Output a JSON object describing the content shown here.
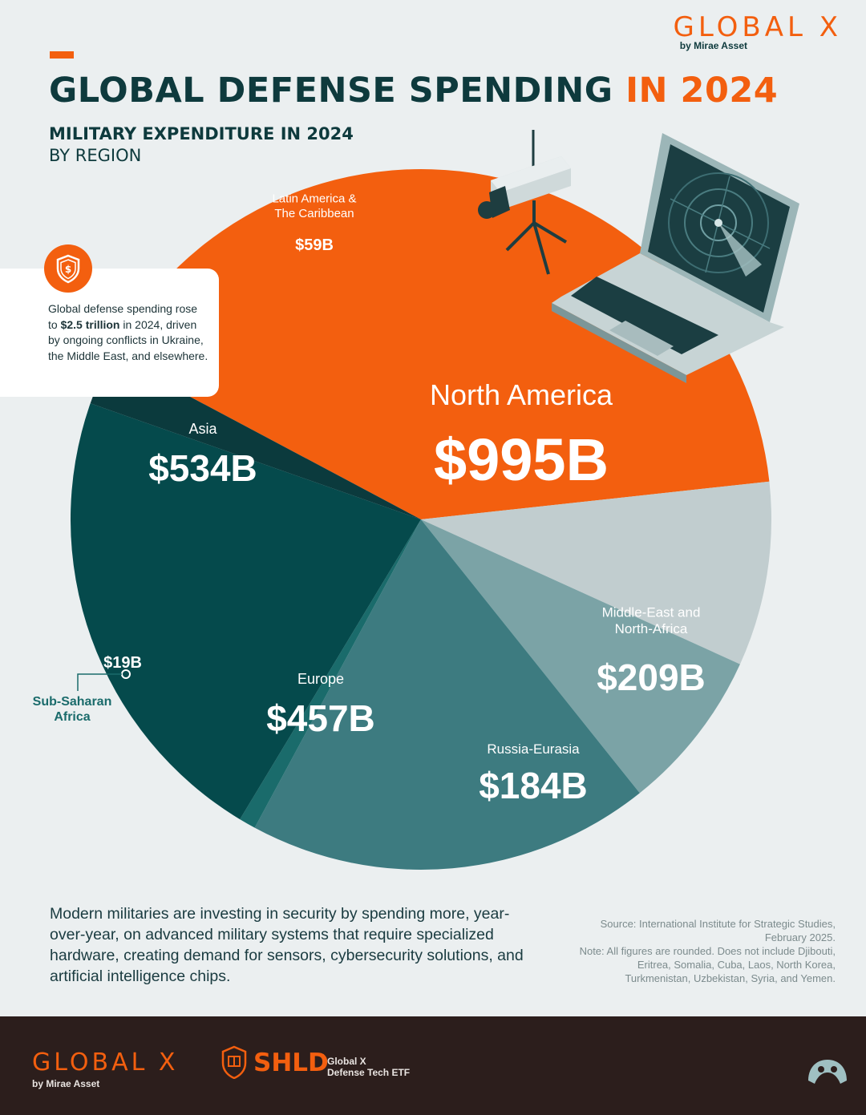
{
  "header": {
    "title_main": "GLOBAL DEFENSE SPENDING",
    "title_highlight": "IN 2024",
    "subtitle": "MILITARY EXPENDITURE IN 2024",
    "subtitle2": "BY REGION"
  },
  "logo": {
    "word": "GLOBAL X",
    "by": "by Mirae Asset"
  },
  "callout": {
    "text_before": "Global defense spending rose to ",
    "text_bold": "$2.5 trillion",
    "text_after": " in 2024, driven by ongoing conflicts in Ukraine, the Middle East, and elsewhere."
  },
  "chart_data": {
    "type": "pie",
    "title": "MILITARY EXPENDITURE IN 2024",
    "subtitle": "BY REGION",
    "units": "USD billions",
    "slices": [
      {
        "label": "North America",
        "label_lines": [
          "North America"
        ],
        "value": 995,
        "value_label": "$995B",
        "color": "#f35f0f"
      },
      {
        "label": "Middle-East and North-Africa",
        "label_lines": [
          "Middle-East and",
          "North-Africa"
        ],
        "value": 209,
        "value_label": "$209B",
        "color": "#c1cdcf"
      },
      {
        "label": "Russia-Eurasia",
        "label_lines": [
          "Russia-Eurasia"
        ],
        "value": 184,
        "value_label": "$184B",
        "color": "#7ba3a6"
      },
      {
        "label": "Europe",
        "label_lines": [
          "Europe"
        ],
        "value": 457,
        "value_label": "$457B",
        "color": "#3d7b80"
      },
      {
        "label": "Sub-Saharan Africa",
        "label_lines": [
          "Sub-Saharan",
          "Africa"
        ],
        "value": 19,
        "value_label": "$19B",
        "color": "#1a6b6b"
      },
      {
        "label": "Asia",
        "label_lines": [
          "Asia"
        ],
        "value": 534,
        "value_label": "$534B",
        "color": "#054a4c"
      },
      {
        "label": "Latin America & The Caribbean",
        "label_lines": [
          "Latin America &",
          "The Caribbean"
        ],
        "value": 59,
        "value_label": "$59B",
        "color": "#0b3a3d"
      }
    ]
  },
  "footnote": "Modern militaries are investing in security by spending more, year-over-year, on advanced military systems that require specialized hardware, creating demand for sensors, cybersecurity solutions, and artificial intelligence chips.",
  "source": {
    "source_text": "Source: International Institute for Strategic Studies, February 2025.",
    "note_text": "Note: All figures are rounded. Does not include Djibouti, Eritrea, Somalia, Cuba, Laos, North Korea, Turkmenistan, Uzbekistan, Syria, and Yemen."
  },
  "footer": {
    "logo_word": "GLOBAL X",
    "logo_by": "by Mirae Asset",
    "ticker": "SHLD",
    "etf_line1": "Global X",
    "etf_line2": "Defense Tech ETF"
  },
  "icons": {
    "shield": "shield-dollar-icon",
    "camera": "security-camera-icon",
    "laptop": "radar-laptop-icon",
    "footer_mark": "brand-mark-icon"
  }
}
